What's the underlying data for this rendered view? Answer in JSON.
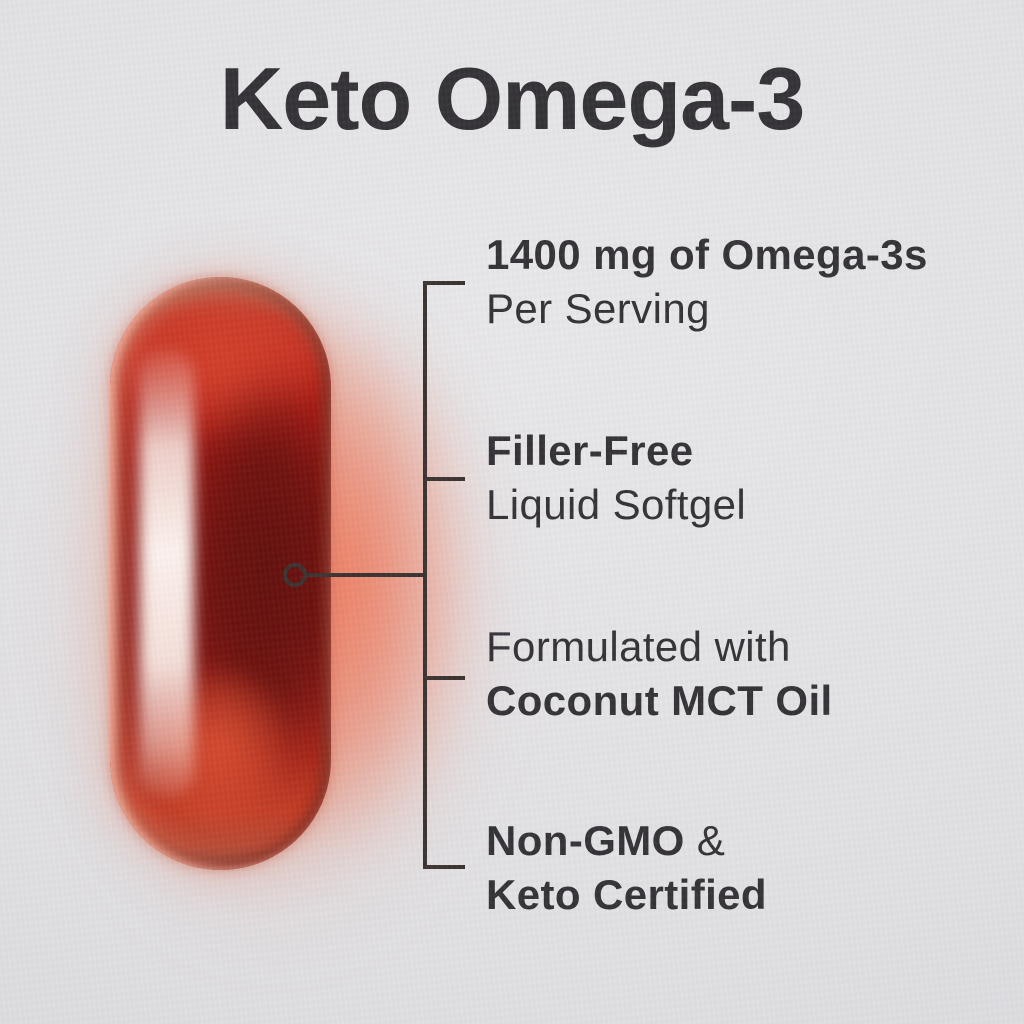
{
  "title": "Keto Omega-3",
  "callouts": [
    {
      "id": "omega-per-serving",
      "lines": [
        [
          {
            "text": "1400 mg of Omega-3s",
            "bold": true
          }
        ],
        [
          {
            "text": "Per Serving",
            "bold": false
          }
        ]
      ]
    },
    {
      "id": "filler-free",
      "lines": [
        [
          {
            "text": "Filler-Free",
            "bold": true
          }
        ],
        [
          {
            "text": "Liquid Softgel",
            "bold": false
          }
        ]
      ]
    },
    {
      "id": "coconut-mct-oil",
      "lines": [
        [
          {
            "text": "Formulated with",
            "bold": false
          }
        ],
        [
          {
            "text": "Coconut MCT Oil",
            "bold": true
          }
        ]
      ]
    },
    {
      "id": "non-gmo-keto-certified",
      "lines": [
        [
          {
            "text": "Non-GMO",
            "bold": true
          },
          {
            "text": " &",
            "bold": false
          }
        ],
        [
          {
            "text": "Keto Certified",
            "bold": true
          }
        ]
      ]
    }
  ],
  "colors": {
    "background": "#e1e0e3",
    "text": "#312f33",
    "callout_line": "#38302d",
    "capsule_red": "#8d130e",
    "capsule_dark_red": "#600d0a",
    "capsule_bright_red": "#c9301f",
    "capsule_highlight": "#fff3ee",
    "glow": "#f07658"
  }
}
